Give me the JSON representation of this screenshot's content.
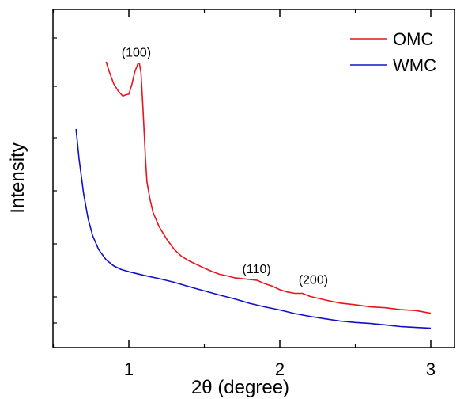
{
  "chart_data": {
    "type": "line",
    "title": "",
    "xlabel": "2θ (degree)",
    "ylabel": "Intensity",
    "xlim": [
      0.5,
      3.2
    ],
    "ylim": [
      0,
      1
    ],
    "x_ticks": [
      1,
      2,
      3
    ],
    "x_tick_labels": [
      "1",
      "2",
      "3"
    ],
    "grid": false,
    "legend_position": "top-right",
    "series": [
      {
        "name": "OMC",
        "color": "#e8141e",
        "x": [
          0.85,
          0.87,
          0.9,
          0.93,
          0.96,
          0.98,
          1.0,
          1.02,
          1.04,
          1.06,
          1.07,
          1.08,
          1.09,
          1.1,
          1.11,
          1.12,
          1.14,
          1.16,
          1.2,
          1.25,
          1.3,
          1.35,
          1.4,
          1.45,
          1.5,
          1.55,
          1.6,
          1.65,
          1.7,
          1.75,
          1.8,
          1.85,
          1.9,
          1.95,
          2.0,
          2.05,
          2.1,
          2.15,
          2.2,
          2.3,
          2.4,
          2.5,
          2.6,
          2.7,
          2.8,
          2.9,
          3.0
        ],
        "y": [
          0.946,
          0.91,
          0.866,
          0.84,
          0.822,
          0.827,
          0.829,
          0.864,
          0.91,
          0.939,
          0.939,
          0.907,
          0.814,
          0.707,
          0.597,
          0.512,
          0.45,
          0.402,
          0.351,
          0.306,
          0.269,
          0.243,
          0.227,
          0.214,
          0.201,
          0.189,
          0.179,
          0.173,
          0.166,
          0.163,
          0.16,
          0.157,
          0.145,
          0.136,
          0.123,
          0.115,
          0.11,
          0.11,
          0.099,
          0.086,
          0.075,
          0.069,
          0.061,
          0.058,
          0.051,
          0.048,
          0.038
        ],
        "annotations": [
          {
            "label": "(100)",
            "x": 1.06,
            "y": 0.939
          },
          {
            "label": "(110)",
            "x": 1.82,
            "y": 0.16
          },
          {
            "label": "(200)",
            "x": 2.18,
            "y": 0.11
          }
        ]
      },
      {
        "name": "WMC",
        "color": "#1010c8",
        "x": [
          0.65,
          0.67,
          0.7,
          0.73,
          0.76,
          0.8,
          0.85,
          0.9,
          0.95,
          1.0,
          1.1,
          1.2,
          1.3,
          1.4,
          1.5,
          1.6,
          1.7,
          1.8,
          1.9,
          2.0,
          2.1,
          2.2,
          2.3,
          2.4,
          2.5,
          2.6,
          2.7,
          2.8,
          2.9,
          3.0
        ],
        "y": [
          0.703,
          0.595,
          0.471,
          0.38,
          0.318,
          0.268,
          0.231,
          0.209,
          0.196,
          0.188,
          0.175,
          0.163,
          0.15,
          0.134,
          0.119,
          0.104,
          0.09,
          0.074,
          0.061,
          0.05,
          0.037,
          0.027,
          0.018,
          0.01,
          0.005,
          0.001,
          -0.004,
          -0.01,
          -0.013,
          -0.016
        ]
      }
    ]
  }
}
